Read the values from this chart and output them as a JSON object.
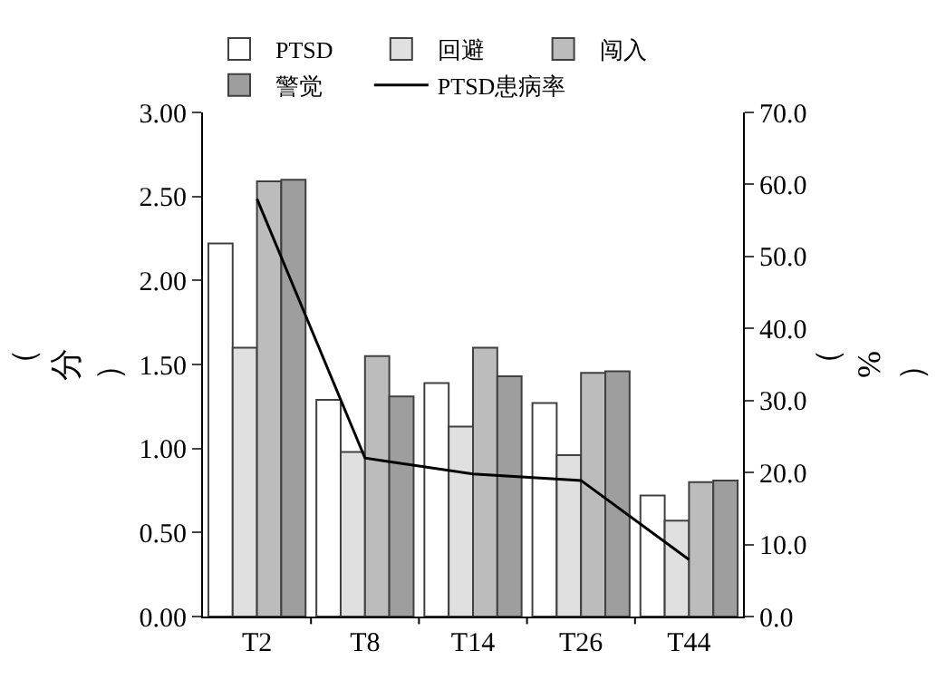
{
  "chart_data": {
    "type": "bar",
    "ylabel": "（分）",
    "y2label": "（%）",
    "categories": [
      "T2",
      "T8",
      "T14",
      "T26",
      "T44"
    ],
    "series": [
      {
        "name": "PTSD",
        "color": "#ffffff",
        "values": [
          2.22,
          1.29,
          1.39,
          1.27,
          0.72
        ]
      },
      {
        "name": "回避",
        "color": "#e0e0e0",
        "values": [
          1.6,
          0.98,
          1.13,
          0.96,
          0.57
        ]
      },
      {
        "name": "闯入",
        "color": "#bcbcbc",
        "values": [
          2.59,
          1.55,
          1.6,
          1.45,
          0.8
        ]
      },
      {
        "name": "警觉",
        "color": "#9e9e9e",
        "values": [
          2.6,
          1.31,
          1.43,
          1.46,
          0.81
        ]
      },
      {
        "name": "PTSD患病率",
        "type": "line",
        "axis": "y2",
        "color": "#000000",
        "values": [
          58.0,
          22.0,
          19.8,
          18.9,
          7.9
        ]
      }
    ],
    "ylim": [
      0,
      3
    ],
    "yticks": [
      {
        "value": 0,
        "label": "0.00"
      },
      {
        "value": 0.5,
        "label": "0.50"
      },
      {
        "value": 1,
        "label": "1.00"
      },
      {
        "value": 1.5,
        "label": "1.50"
      },
      {
        "value": 2,
        "label": "2.00"
      },
      {
        "value": 2.5,
        "label": "2.50"
      },
      {
        "value": 3,
        "label": "3.00"
      }
    ],
    "y2lim": [
      0,
      70
    ],
    "y2ticks": [
      {
        "value": 0,
        "label": "0.0"
      },
      {
        "value": 10,
        "label": "10.0"
      },
      {
        "value": 20,
        "label": "20.0"
      },
      {
        "value": 30,
        "label": "30.0"
      },
      {
        "value": 40,
        "label": "40.0"
      },
      {
        "value": 50,
        "label": "50.0"
      },
      {
        "value": 60,
        "label": "60.0"
      },
      {
        "value": 70,
        "label": "70.0"
      }
    ],
    "legend": "top left",
    "marker": "none",
    "line_style": "solid"
  }
}
